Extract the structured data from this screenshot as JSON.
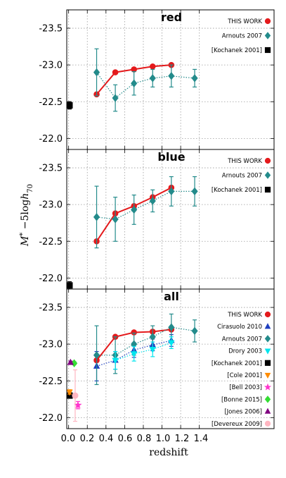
{
  "chart_data": {
    "type": "scatter",
    "x_axis": {
      "label": "redshift",
      "ticks": [
        "0.0",
        "0.2",
        "0.4",
        "0.6",
        "0.8",
        "1.0",
        "1.2",
        "1.4"
      ],
      "range": [
        -0.02,
        2.2
      ]
    },
    "y_axis": {
      "label": "M* − 5log h70",
      "label_parts": {
        "main": "M",
        "sup": "*",
        "mid": " −5log",
        "h": "h",
        "sub": "70"
      },
      "ticks": [
        "-22.0",
        "-22.5",
        "-23.0",
        "-23.5"
      ],
      "range": [
        -21.85,
        -23.75
      ],
      "inverted": true
    },
    "grid": true,
    "legend_position": "top-right",
    "panels": [
      {
        "title": "red",
        "legend": [
          "THIS WORK",
          "Arnouts 2007",
          "[Kochanek 2001]"
        ],
        "series": [
          {
            "name": "THIS WORK",
            "color": "#e41a1c",
            "marker": "circle",
            "line": "solid",
            "x": [
              0.3,
              0.5,
              0.7,
              0.9,
              1.1
            ],
            "y": [
              -22.6,
              -22.9,
              -22.94,
              -22.98,
              -23.0
            ]
          },
          {
            "name": "Arnouts 2007",
            "color": "#238b8b",
            "marker": "diamond",
            "line": "dotted",
            "x": [
              0.3,
              0.5,
              0.7,
              0.9,
              1.1,
              1.35
            ],
            "y": [
              -22.9,
              -22.55,
              -22.75,
              -22.82,
              -22.85,
              -22.82
            ],
            "err": [
              0.32,
              0.18,
              0.16,
              0.12,
              0.15,
              0.12
            ]
          },
          {
            "name": "[Kochanek 2001]",
            "color": "#000000",
            "marker": "square",
            "line": "none",
            "x": [
              0.01
            ],
            "y": [
              -22.45
            ],
            "err": [
              0.05
            ]
          }
        ]
      },
      {
        "title": "blue",
        "legend": [
          "THIS WORK",
          "Arnouts 2007",
          "[Kochanek 2001]"
        ],
        "series": [
          {
            "name": "THIS WORK",
            "color": "#e41a1c",
            "marker": "circle",
            "line": "solid",
            "x": [
              0.3,
              0.5,
              0.7,
              0.9,
              1.1
            ],
            "y": [
              -22.5,
              -22.88,
              -22.98,
              -23.1,
              -23.23
            ]
          },
          {
            "name": "Arnouts 2007",
            "color": "#238b8b",
            "marker": "diamond",
            "line": "dotted",
            "x": [
              0.3,
              0.5,
              0.7,
              0.9,
              1.1,
              1.35
            ],
            "y": [
              -22.83,
              -22.8,
              -22.93,
              -23.05,
              -23.18,
              -23.18
            ],
            "err": [
              0.42,
              0.3,
              0.2,
              0.15,
              0.2,
              0.2
            ]
          },
          {
            "name": "[Kochanek 2001]",
            "color": "#000000",
            "marker": "square",
            "line": "none",
            "x": [
              0.01
            ],
            "y": [
              -21.9
            ],
            "err": [
              0.05
            ]
          }
        ]
      },
      {
        "title": "all",
        "legend": [
          "THIS WORK",
          "Cirasuolo 2010",
          "Arnouts 2007",
          "Drory 2003",
          "[Kochanek 2001]",
          "[Cole 2001]",
          "[Bell 2003]",
          "[Bonne 2015]",
          "[Jones 2006]",
          "[Devereux 2009]"
        ],
        "series": [
          {
            "name": "THIS WORK",
            "color": "#e41a1c",
            "marker": "circle",
            "line": "solid",
            "x": [
              0.3,
              0.5,
              0.7,
              0.9,
              1.1
            ],
            "y": [
              -22.78,
              -23.1,
              -23.16,
              -23.17,
              -23.2
            ]
          },
          {
            "name": "Cirasuolo 2010",
            "color": "#1f3fbf",
            "marker": "triangle-up",
            "line": "dotted",
            "x": [
              0.3,
              0.5,
              0.7,
              0.9,
              1.1
            ],
            "y": [
              -22.7,
              -22.78,
              -22.92,
              -22.99,
              -23.05
            ],
            "err": [
              0.2,
              0.12,
              0.1,
              0.08,
              0.08
            ]
          },
          {
            "name": "Arnouts 2007",
            "color": "#238b8b",
            "marker": "diamond",
            "line": "dotted",
            "x": [
              0.3,
              0.5,
              0.7,
              0.9,
              1.1,
              1.35
            ],
            "y": [
              -22.85,
              -22.85,
              -23.0,
              -23.1,
              -23.23,
              -23.18
            ],
            "err": [
              0.4,
              0.25,
              0.15,
              0.15,
              0.18,
              0.15
            ]
          },
          {
            "name": "Drory 2003",
            "color": "#00e5ee",
            "marker": "triangle-down",
            "line": "dotted",
            "x": [
              0.5,
              0.7,
              0.9,
              1.1
            ],
            "y": [
              -22.78,
              -22.87,
              -22.93,
              -23.02
            ],
            "err": [
              0.12,
              0.1,
              0.1,
              0.08
            ]
          },
          {
            "name": "[Kochanek 2001]",
            "color": "#000000",
            "marker": "square",
            "line": "none",
            "x": [
              0.01
            ],
            "y": [
              -22.3
            ],
            "err": [
              0.03
            ]
          },
          {
            "name": "[Cole 2001]",
            "color": "#ff8c00",
            "marker": "triangle-down",
            "line": "none",
            "x": [
              0.01
            ],
            "y": [
              -22.35
            ],
            "err": [
              0.03
            ]
          },
          {
            "name": "[Bell 2003]",
            "color": "#ff33cc",
            "marker": "star",
            "line": "none",
            "x": [
              0.1
            ],
            "y": [
              -22.17
            ],
            "err": [
              0.05
            ]
          },
          {
            "name": "[Bonne 2015]",
            "color": "#33dd33",
            "marker": "diamond",
            "line": "none",
            "x": [
              0.06
            ],
            "y": [
              -22.74
            ],
            "err": [
              0.02
            ]
          },
          {
            "name": "[Jones 2006]",
            "color": "#800080",
            "marker": "triangle-up",
            "line": "none",
            "x": [
              0.02
            ],
            "y": [
              -22.75
            ],
            "err": [
              0.02
            ]
          },
          {
            "name": "[Devereux 2009]",
            "color": "#ffb6c1",
            "marker": "circle",
            "line": "none",
            "x": [
              0.07
            ],
            "y": [
              -22.3
            ],
            "err": [
              0.35
            ]
          }
        ]
      }
    ]
  }
}
